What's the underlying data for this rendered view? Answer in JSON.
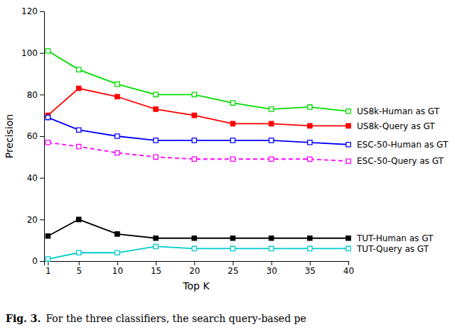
{
  "chart_data": {
    "type": "line",
    "x": [
      1,
      5,
      10,
      15,
      20,
      25,
      30,
      35,
      40
    ],
    "series": [
      {
        "name": "US8k-Human as GT",
        "color": "#00dd00",
        "marker": "square-open",
        "line_style": "solid",
        "values": [
          101,
          92,
          85,
          80,
          80,
          76,
          73,
          74,
          72
        ]
      },
      {
        "name": "US8k-Query as GT",
        "color": "#ff0000",
        "marker": "square",
        "line_style": "solid",
        "values": [
          70,
          83,
          79,
          73,
          70,
          66,
          66,
          65,
          65
        ]
      },
      {
        "name": "ESC-50-Human as GT",
        "color": "#0000ff",
        "marker": "square-open",
        "line_style": "solid",
        "values": [
          69,
          63,
          60,
          58,
          58,
          58,
          58,
          57,
          56
        ]
      },
      {
        "name": "ESC-50-Query as GT",
        "color": "#ff00ff",
        "marker": "square-open",
        "line_style": "dashed",
        "values": [
          57,
          55,
          52,
          50,
          49,
          49,
          49,
          49,
          48
        ]
      },
      {
        "name": "TUT-Human as GT",
        "color": "#000000",
        "marker": "square",
        "line_style": "solid",
        "values": [
          12,
          20,
          13,
          11,
          11,
          11,
          11,
          11,
          11
        ]
      },
      {
        "name": "TUT-Query as GT",
        "color": "#00cccc",
        "marker": "square-open",
        "line_style": "solid",
        "values": [
          1,
          4,
          4,
          7,
          6,
          6,
          6,
          6,
          6
        ]
      }
    ],
    "x_label": "Top K",
    "y_label": "Precision",
    "xlim": [
      0.5,
      40
    ],
    "ylim": [
      0,
      120
    ],
    "xticks": [
      1,
      5,
      10,
      15,
      20,
      25,
      30,
      35,
      40
    ],
    "yticks": [
      0,
      20,
      40,
      60,
      80,
      100,
      120
    ],
    "grid": false,
    "annotations": [
      "Fig. 3.",
      "For the three classifiers, the search query-based pe"
    ]
  }
}
